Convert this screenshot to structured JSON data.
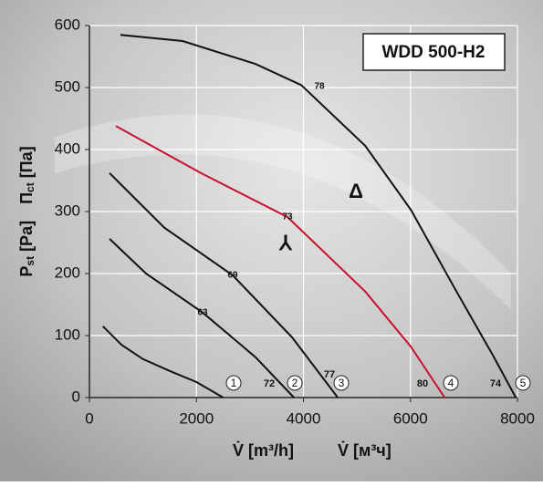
{
  "chart_data": {
    "type": "line",
    "title": "WDD 500-H2",
    "xlabel": [
      "V̇ [m³/h]",
      "V̇ [м³ч]"
    ],
    "ylabel": [
      "P",
      "st",
      " [Pa]",
      "П",
      "ct",
      " [Па]"
    ],
    "xlim": [
      0,
      8000
    ],
    "xticks": [
      0,
      2000,
      4000,
      6000,
      8000
    ],
    "ylim": [
      0,
      600
    ],
    "yticks": [
      0,
      100,
      200,
      300,
      400,
      500,
      600
    ],
    "grid": true,
    "connection_labels": [
      "Δ",
      "⅄"
    ],
    "series": [
      {
        "name": "1",
        "color": "#111111",
        "x": [
          250,
          600,
          1000,
          1500,
          2000,
          2500
        ],
        "values": [
          115,
          85,
          62,
          43,
          25,
          0
        ]
      },
      {
        "name": "2",
        "color": "#111111",
        "mid_label": "63",
        "end_label": "72",
        "x": [
          375,
          1058,
          2116,
          3106,
          3823
        ],
        "values": [
          256,
          200,
          137,
          65,
          0
        ]
      },
      {
        "name": "3",
        "color": "#111111",
        "mid_label": "69",
        "end_label": "77",
        "x": [
          375,
          1400,
          2679,
          3788,
          4642
        ],
        "values": [
          362,
          274,
          197,
          97,
          0
        ]
      },
      {
        "name": "4",
        "color": "#c8102e",
        "mid_label": "73",
        "end_label": "80",
        "x": [
          495,
          2082,
          3703,
          5154,
          6007,
          6638
        ],
        "values": [
          438,
          362,
          291,
          171,
          82,
          0
        ]
      },
      {
        "name": "5",
        "color": "#111111",
        "mid_label": "78",
        "end_label": "74",
        "x": [
          580,
          1741,
          3106,
          3959,
          5154,
          6007,
          6860,
          7543,
          7969
        ],
        "values": [
          585,
          575,
          538,
          504,
          406,
          303,
          171,
          68,
          0
        ]
      }
    ]
  }
}
